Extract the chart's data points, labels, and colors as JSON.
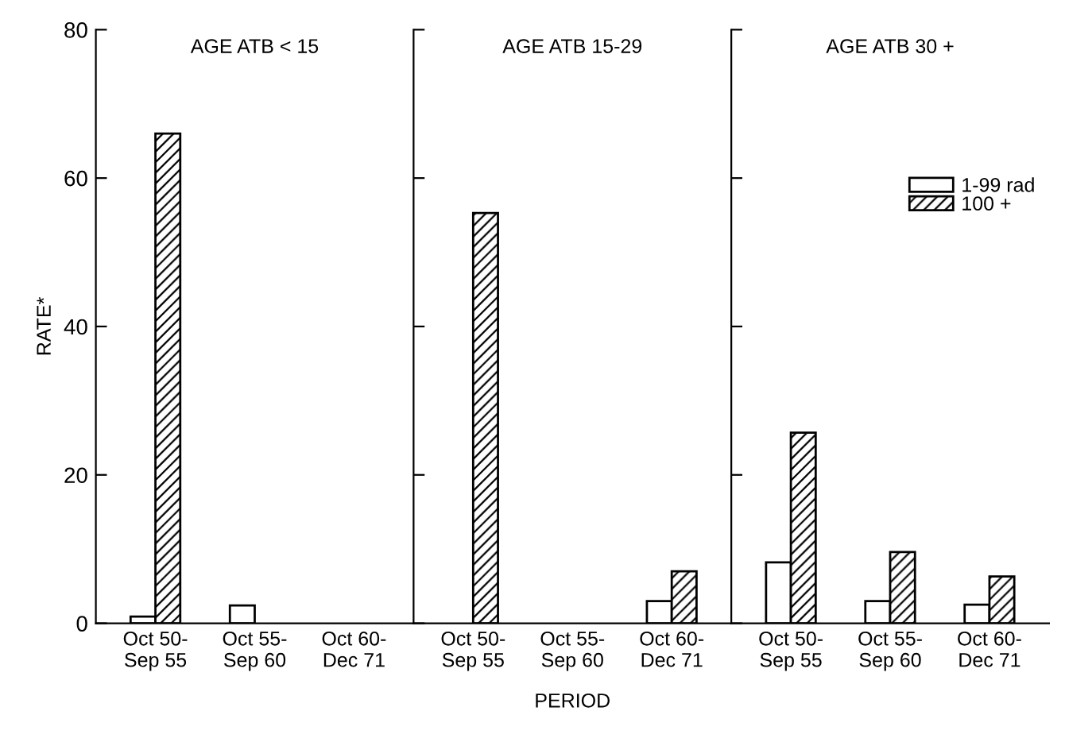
{
  "chart_data": [
    {
      "type": "bar",
      "title": "AGE ATB < 15",
      "ylabel": "RATE*",
      "categories": [
        "Oct 50-\nSep 55",
        "Oct 55-\nSep 60",
        "Oct 60-\nDec 71"
      ],
      "ylim": [
        0,
        80
      ],
      "yticks": [
        0,
        20,
        40,
        60,
        80
      ],
      "grid": false,
      "legend": false,
      "series": [
        {
          "color": "#ffffff",
          "values": [
            0.9,
            2.4,
            null
          ]
        },
        {
          "color": "#000000",
          "values": [
            66,
            null,
            null
          ]
        }
      ]
    },
    {
      "type": "bar",
      "title": "AGE ATB 15-29",
      "xlabel": "PERIOD",
      "categories": [
        "Oct 50-\nSep 55",
        "Oct 55-\nSep 60",
        "Oct 60-\nDec 71"
      ],
      "ylim": [
        0,
        80
      ],
      "yticks": [
        0,
        20,
        40,
        60,
        80
      ],
      "tick_labels": "x",
      "grid": false,
      "legend": false,
      "series": [
        {
          "color": "#ffffff",
          "values": [
            null,
            null,
            3.0
          ]
        },
        {
          "color": "#000000",
          "values": [
            55.3,
            null,
            7.0
          ]
        }
      ]
    },
    {
      "type": "bar",
      "title": "AGE ATB 30 +",
      "categories": [
        "Oct 50-\nSep 55",
        "Oct 55-\nSep 60",
        "Oct 60-\nDec 71"
      ],
      "ylim": [
        0,
        80
      ],
      "yticks": [
        0,
        20,
        40,
        60,
        80
      ],
      "tick_labels": "x",
      "grid": false,
      "legend": "right",
      "series": [
        {
          "name": "1-99 rad",
          "color": "#ffffff",
          "values": [
            8.2,
            3.0,
            2.5
          ]
        },
        {
          "name": "100 +",
          "color": "#000000",
          "values": [
            25.7,
            9.6,
            6.3
          ]
        }
      ]
    }
  ]
}
